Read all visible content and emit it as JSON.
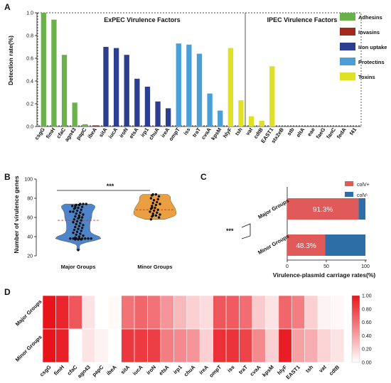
{
  "panel_labels": [
    "A",
    "B",
    "C",
    "D"
  ],
  "chart_data": [
    {
      "panel": "A",
      "type": "bar",
      "ylabel": "Detection rate(%)",
      "ylim": [
        0,
        1.0
      ],
      "yticks": [
        0,
        0.2,
        0.4,
        0.6,
        0.8,
        1.0
      ],
      "group_titles": [
        "ExPEC Virulence Factors",
        "IPEC Virulence Factors"
      ],
      "legend_position": "right",
      "legend": [
        {
          "name": "Adhesins",
          "color": "#6ab04c"
        },
        {
          "name": "Invasins",
          "color": "#a3291f"
        },
        {
          "name": "Iron uptake",
          "color": "#2c3e8f"
        },
        {
          "name": "Protectins",
          "color": "#4a9fd9"
        },
        {
          "name": "Toxins",
          "color": "#e0e024"
        }
      ],
      "categories": [
        "csgG",
        "fimH",
        "cfaC",
        "agn43",
        "papC",
        "ibeA",
        "sitA",
        "iucA",
        "iroN",
        "etsA",
        "irp1",
        "chuA",
        "ireA",
        "ompT",
        "iss",
        "traT",
        "cvaA",
        "kpsM",
        "hlyF",
        "tsh",
        "vat",
        "cdtB",
        "EAST1",
        "stx2eB",
        "stb",
        "eltA",
        "eae",
        "faeG",
        "fanC",
        "fedA",
        "f41"
      ],
      "values": [
        1.0,
        0.94,
        0.63,
        0.21,
        0.02,
        0.01,
        0.7,
        0.69,
        0.63,
        0.42,
        0.35,
        0.22,
        0.16,
        0.73,
        0.72,
        0.64,
        0.29,
        0.14,
        0.69,
        0.23,
        0.09,
        0.05,
        0.53,
        0,
        0,
        0,
        0,
        0,
        0,
        0,
        0
      ],
      "colors": [
        "#6ab04c",
        "#6ab04c",
        "#6ab04c",
        "#6ab04c",
        "#6ab04c",
        "#a3291f",
        "#2c3e8f",
        "#2c3e8f",
        "#2c3e8f",
        "#2c3e8f",
        "#2c3e8f",
        "#2c3e8f",
        "#2c3e8f",
        "#4a9fd9",
        "#4a9fd9",
        "#4a9fd9",
        "#4a9fd9",
        "#4a9fd9",
        "#e0e024",
        "#e0e024",
        "#e0e024",
        "#e0e024",
        "#e0e024",
        "#e0e024",
        "#e0e024",
        "#e0e024",
        "#e0e024",
        "#e0e024",
        "#e0e024",
        "#e0e024",
        "#e0e024"
      ]
    },
    {
      "panel": "B",
      "type": "scatter",
      "ylabel": "Number of virulence genes",
      "ylim": [
        20,
        100
      ],
      "yticks": [
        20,
        40,
        60,
        80,
        100
      ],
      "categories": [
        "Major Groups",
        "Minor Groups"
      ],
      "violin_colors": [
        "#3b78c4",
        "#e8962e"
      ],
      "significance": "***",
      "medians": [
        57,
        68
      ],
      "points": [
        [
          74,
          74,
          74,
          73,
          73,
          72,
          72,
          71,
          70,
          70,
          69,
          68,
          67,
          66,
          66,
          65,
          64,
          63,
          62,
          61,
          60,
          60,
          59,
          58,
          57,
          56,
          55,
          54,
          53,
          52,
          51,
          50,
          49,
          48,
          47,
          46,
          45,
          44,
          43,
          42,
          41,
          40,
          39,
          38,
          38,
          38,
          38,
          38,
          38,
          38,
          38,
          37,
          37,
          37,
          26
        ],
        [
          84,
          84,
          83,
          82,
          80,
          79,
          78,
          76,
          75,
          74,
          73,
          72,
          70,
          70,
          69,
          68,
          67,
          66,
          65,
          64,
          63,
          62,
          62,
          61,
          60,
          58
        ]
      ]
    },
    {
      "panel": "C",
      "type": "bar",
      "orientation": "horizontal-stacked",
      "xlabel": "Virulence-plasmid carriage rates(%)",
      "xlim": [
        0,
        100
      ],
      "xticks": [
        0,
        50,
        100
      ],
      "categories": [
        "Major Groups",
        "Minor Groups"
      ],
      "significance": "***",
      "legend_position": "top-right",
      "series": [
        {
          "name": "colV+",
          "color": "#e15a5a",
          "values": [
            91.3,
            48.3
          ]
        },
        {
          "name": "colV-",
          "color": "#2e6ea6",
          "values": [
            8.7,
            51.7
          ]
        }
      ],
      "data_labels": [
        "91.3%",
        "48.3%"
      ]
    },
    {
      "panel": "D",
      "type": "heatmap",
      "rows": [
        "Major Groups",
        "Minor Groups"
      ],
      "columns": [
        "csgG",
        "fimH",
        "cfaC",
        "agn43",
        "papC",
        "ibeA",
        "sitA",
        "iucA",
        "iroN",
        "etsA",
        "irp1",
        "chuA",
        "ireA",
        "ompT",
        "iss",
        "traT",
        "cvaA",
        "kpsM",
        "hlyF",
        "EAST1",
        "tsh",
        "vat",
        "cdtB"
      ],
      "values": [
        [
          1.0,
          0.93,
          0.72,
          0.12,
          0.0,
          0.02,
          0.6,
          0.65,
          0.6,
          0.45,
          0.3,
          0.2,
          0.15,
          0.72,
          0.7,
          0.62,
          0.22,
          0.12,
          0.65,
          0.55,
          0.2,
          0.05,
          0.03
        ],
        [
          1.0,
          0.95,
          0.0,
          0.12,
          0.05,
          0.0,
          0.85,
          0.84,
          0.82,
          0.55,
          0.5,
          0.45,
          0.2,
          0.88,
          0.87,
          0.8,
          0.5,
          0.2,
          0.96,
          0.4,
          0.35,
          0.18,
          0.12
        ]
      ],
      "colorbar": {
        "min": 0,
        "max": 1.0,
        "ticks": [
          "0.00",
          "0.20",
          "0.40",
          "0.60",
          "0.80",
          "1.00"
        ],
        "color": "#e8141c"
      }
    }
  ]
}
